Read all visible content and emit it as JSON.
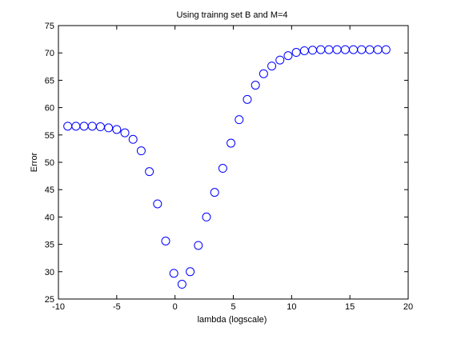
{
  "chart_data": {
    "type": "scatter",
    "title": "Using trainng set B and M=4",
    "xlabel": "lambda (logscale)",
    "ylabel": "Error",
    "xlim": [
      -10,
      20
    ],
    "ylim": [
      25,
      75
    ],
    "x_ticks": [
      -10,
      -5,
      0,
      5,
      10,
      15,
      20
    ],
    "y_ticks": [
      25,
      30,
      35,
      40,
      45,
      50,
      55,
      60,
      65,
      70,
      75
    ],
    "grid": false,
    "marker": "open-circle",
    "series": [
      {
        "color": "#0000ff",
        "x": [
          -9.2,
          -8.5,
          -7.8,
          -7.1,
          -6.4,
          -5.7,
          -5.0,
          -4.3,
          -3.6,
          -2.9,
          -2.2,
          -1.5,
          -0.8,
          -0.1,
          0.6,
          1.3,
          2.0,
          2.7,
          3.4,
          4.1,
          4.8,
          5.5,
          6.2,
          6.9,
          7.6,
          8.3,
          9.0,
          9.7,
          10.4,
          11.1,
          11.8,
          12.5,
          13.2,
          13.9,
          14.6,
          15.3,
          16.0,
          16.7,
          17.4,
          18.1
        ],
        "y": [
          56.6,
          56.6,
          56.6,
          56.6,
          56.5,
          56.3,
          56.0,
          55.4,
          54.2,
          52.1,
          48.3,
          42.4,
          35.6,
          29.7,
          27.7,
          30.0,
          34.8,
          40.0,
          44.5,
          48.9,
          53.5,
          57.8,
          61.5,
          64.1,
          66.2,
          67.6,
          68.7,
          69.5,
          70.1,
          70.4,
          70.5,
          70.6,
          70.6,
          70.6,
          70.6,
          70.6,
          70.6,
          70.6,
          70.6,
          70.6
        ]
      }
    ]
  }
}
